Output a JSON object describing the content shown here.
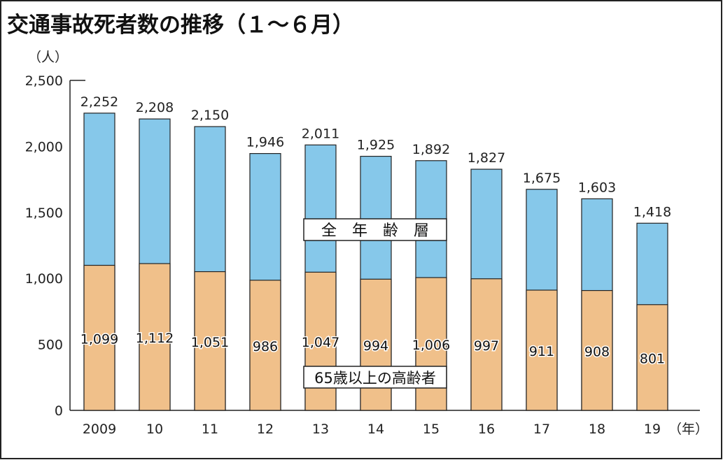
{
  "chart_data": {
    "type": "bar",
    "stacked": "overlay",
    "title": "交通事故死者数の推移（１～６月）",
    "ylabel": "（人）",
    "xlabel": "（年）",
    "ylim": [
      0,
      2500
    ],
    "yticks": [
      0,
      500,
      1000,
      1500,
      2000,
      2500
    ],
    "ytick_labels": [
      "0",
      "500",
      "1,000",
      "1,500",
      "2,000",
      "2,500"
    ],
    "categories": [
      "2009",
      "10",
      "11",
      "12",
      "13",
      "14",
      "15",
      "16",
      "17",
      "18",
      "19"
    ],
    "series": [
      {
        "name": "全　年　齢　層",
        "color": "#86c8ea",
        "values": [
          2252,
          2208,
          2150,
          1946,
          2011,
          1925,
          1892,
          1827,
          1675,
          1603,
          1418
        ],
        "labels": [
          "2,252",
          "2,208",
          "2,150",
          "1,946",
          "2,011",
          "1,925",
          "1,892",
          "1,827",
          "1,675",
          "1,603",
          "1,418"
        ]
      },
      {
        "name": "65歳以上の高齢者",
        "color": "#f0c08a",
        "values": [
          1099,
          1112,
          1051,
          986,
          1047,
          994,
          1006,
          997,
          911,
          908,
          801
        ],
        "labels": [
          "1,099",
          "1,112",
          "1,051",
          "986",
          "1,047",
          "994",
          "1,006",
          "997",
          "911",
          "908",
          "801"
        ]
      }
    ],
    "grid": false
  }
}
